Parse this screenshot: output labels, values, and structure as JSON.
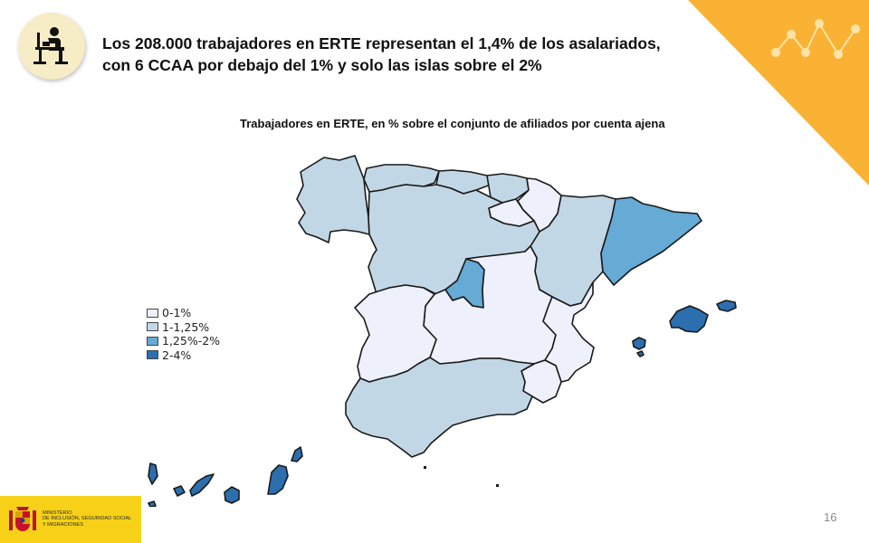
{
  "header": {
    "title_line1": "Los 208.000 trabajadores  en ERTE representan el 1,4% de los asalariados,",
    "title_line2": "con 6 CCAA por debajo del 1% y solo las islas sobre el 2%",
    "icon": "worker-at-desk-icon"
  },
  "map": {
    "title": "Trabajadores en ERTE, en % sobre el conjunto de afiliados por cuenta ajena",
    "legend": [
      {
        "label": "0-1%",
        "color": "#eef1fb"
      },
      {
        "label": "1-1,25%",
        "color": "#c2d7e6"
      },
      {
        "label": "1,25%-2%",
        "color": "#66aad6"
      },
      {
        "label": "2-4%",
        "color": "#2b6faf"
      }
    ],
    "regions": [
      {
        "name": "Galicia",
        "class": "1-1,25%"
      },
      {
        "name": "Asturias",
        "class": "1-1,25%"
      },
      {
        "name": "Cantabria",
        "class": "1-1,25%"
      },
      {
        "name": "País Vasco",
        "class": "1-1,25%"
      },
      {
        "name": "Navarra",
        "class": "0-1%"
      },
      {
        "name": "La Rioja",
        "class": "0-1%"
      },
      {
        "name": "Aragón",
        "class": "1-1,25%"
      },
      {
        "name": "Cataluña",
        "class": "1,25%-2%"
      },
      {
        "name": "Castilla y León",
        "class": "1-1,25%"
      },
      {
        "name": "Madrid",
        "class": "1,25%-2%"
      },
      {
        "name": "Extremadura",
        "class": "0-1%"
      },
      {
        "name": "Castilla-La Mancha",
        "class": "0-1%"
      },
      {
        "name": "Comunidad Valenciana",
        "class": "0-1%"
      },
      {
        "name": "Murcia",
        "class": "0-1%"
      },
      {
        "name": "Andalucía",
        "class": "1-1,25%"
      },
      {
        "name": "Illes Balears",
        "class": "2-4%"
      },
      {
        "name": "Canarias",
        "class": "2-4%"
      }
    ]
  },
  "footer": {
    "logo_line1": "MINISTERIO",
    "logo_line2": "DE INCLUSIÓN, SEGURIDAD SOCIAL",
    "logo_line3": "Y MIGRACIONES",
    "page_number": "16"
  },
  "colors": {
    "accent": "#f9b233",
    "logo_background": "#f7d117",
    "border": "#1a1a1a"
  }
}
